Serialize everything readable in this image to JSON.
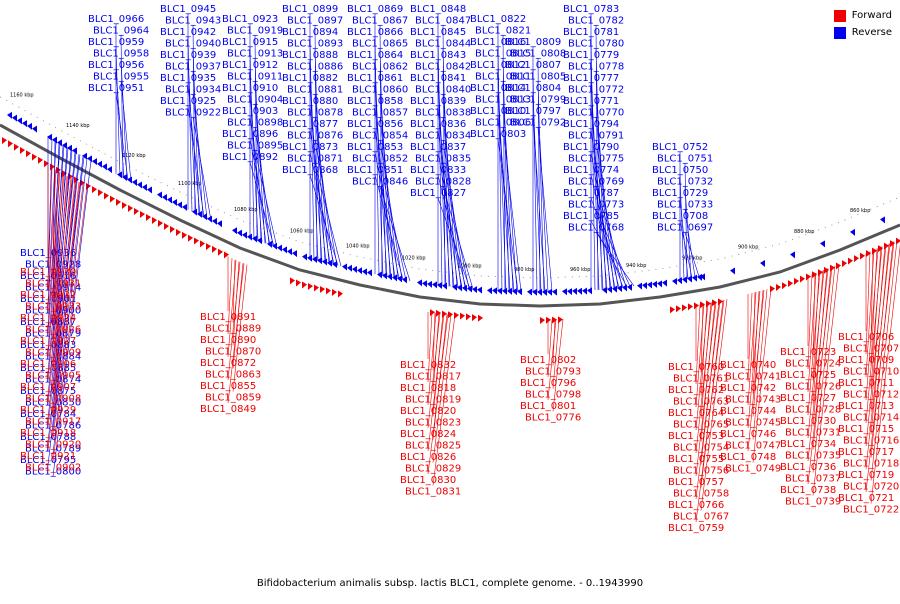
{
  "legend": {
    "forward_label": "Forward",
    "reverse_label": "Reverse",
    "forward_color": "#ee0000",
    "reverse_color": "#0000ee"
  },
  "caption": "Bifidobacterium animalis subsp. lactis BLC1, complete genome. - 0..1943990",
  "ruler_ticks": [
    "1160 kbp",
    "1140 kbp",
    "1120 kbp",
    "1100 kbp",
    "1080 kbp",
    "1060 kbp",
    "1040 kbp",
    "1020 kbp",
    "1000 kbp",
    "980 kbp",
    "960 kbp",
    "940 kbp",
    "920 kbp",
    "900 kbp",
    "880 kbp",
    "860 kbp"
  ],
  "reverse_labels": [
    "BLC1_0966",
    "BLC1_0964",
    "BLC1_0959",
    "BLC1_0958",
    "BLC1_0956",
    "BLC1_0955",
    "BLC1_0951",
    "BLC1_0945",
    "BLC1_0943",
    "BLC1_0942",
    "BLC1_0940",
    "BLC1_0939",
    "BLC1_0937",
    "BLC1_0935",
    "BLC1_0934",
    "BLC1_0925",
    "BLC1_0922",
    "BLC1_0923",
    "BLC1_0919",
    "BLC1_0915",
    "BLC1_0913",
    "BLC1_0912",
    "BLC1_0911",
    "BLC1_0910",
    "BLC1_0904",
    "BLC1_0903",
    "BLC1_0898",
    "BLC1_0896",
    "BLC1_0895",
    "BLC1_0892",
    "BLC1_0899",
    "BLC1_0897",
    "BLC1_0894",
    "BLC1_0893",
    "BLC1_0888",
    "BLC1_0886",
    "BLC1_0882",
    "BLC1_0881",
    "BLC1_0880",
    "BLC1_0878",
    "BLC1_0877",
    "BLC1_0876",
    "BLC1_0873",
    "BLC1_0871",
    "BLC1_0868",
    "BLC1_0869",
    "BLC1_0867",
    "BLC1_0866",
    "BLC1_0865",
    "BLC1_0864",
    "BLC1_0862",
    "BLC1_0861",
    "BLC1_0860",
    "BLC1_0858",
    "BLC1_0857",
    "BLC1_0856",
    "BLC1_0854",
    "BLC1_0853",
    "BLC1_0852",
    "BLC1_0851",
    "BLC1_0846",
    "BLC1_0848",
    "BLC1_0847",
    "BLC1_0845",
    "BLC1_0844",
    "BLC1_0843",
    "BLC1_0842",
    "BLC1_0841",
    "BLC1_0840",
    "BLC1_0839",
    "BLC1_0838",
    "BLC1_0836",
    "BLC1_0834",
    "BLC1_0837",
    "BLC1_0835",
    "BLC1_0833",
    "BLC1_0828",
    "BLC1_0827",
    "BLC1_0822",
    "BLC1_0821",
    "BLC1_0816",
    "BLC1_0815",
    "BLC1_0812",
    "BLC1_0811",
    "BLC1_0814",
    "BLC1_0813",
    "BLC1_0810",
    "BLC1_0806",
    "BLC1_0803",
    "BLC1_0809",
    "BLC1_0808",
    "BLC1_0807",
    "BLC1_0805",
    "BLC1_0804",
    "BLC1_0799",
    "BLC1_0797",
    "BLC1_0792",
    "BLC1_0783",
    "BLC1_0782",
    "BLC1_0781",
    "BLC1_0780",
    "BLC1_0779",
    "BLC1_0778",
    "BLC1_0777",
    "BLC1_0772",
    "BLC1_0771",
    "BLC1_0770",
    "BLC1_0794",
    "BLC1_0791",
    "BLC1_0790",
    "BLC1_0775",
    "BLC1_0774",
    "BLC1_0769",
    "BLC1_0787",
    "BLC1_0773",
    "BLC1_0785",
    "BLC1_0768",
    "BLC1_0752",
    "BLC1_0751",
    "BLC1_0750",
    "BLC1_0732",
    "BLC1_0729",
    "BLC1_0733",
    "BLC1_0708",
    "BLC1_0697",
    "BLC1_0936",
    "BLC1_0928",
    "BLC1_0916",
    "BLC1_0914",
    "BLC1_0901",
    "BLC1_0900",
    "BLC1_0887",
    "BLC1_0879",
    "BLC1_0883",
    "BLC1_0884",
    "BLC1_0885",
    "BLC1_0874",
    "BLC1_0875",
    "BLC1_0850",
    "BLC1_0784",
    "BLC1_0786",
    "BLC1_0788",
    "BLC1_0789",
    "BLC1_0795",
    "BLC1_0800"
  ],
  "forward_labels": [
    "BLC1_0930",
    "BLC1_0931",
    "BLC1_0932",
    "BLC1_0933",
    "BLC1_0924",
    "BLC1_0926",
    "BLC1_0927",
    "BLC1_0909",
    "BLC1_0906",
    "BLC1_0905",
    "BLC1_0907",
    "BLC1_0908",
    "BLC1_0929",
    "BLC1_0917",
    "BLC1_0918",
    "BLC1_0920",
    "BLC1_0921",
    "BLC1_0902",
    "BLC1_0891",
    "BLC1_0889",
    "BLC1_0890",
    "BLC1_0870",
    "BLC1_0872",
    "BLC1_0863",
    "BLC1_0855",
    "BLC1_0859",
    "BLC1_0849",
    "BLC1_0832",
    "BLC1_0817",
    "BLC1_0818",
    "BLC1_0819",
    "BLC1_0820",
    "BLC1_0823",
    "BLC1_0824",
    "BLC1_0825",
    "BLC1_0826",
    "BLC1_0829",
    "BLC1_0830",
    "BLC1_0831",
    "BLC1_0802",
    "BLC1_0793",
    "BLC1_0796",
    "BLC1_0798",
    "BLC1_0801",
    "BLC1_0776",
    "BLC1_0760",
    "BLC1_0761",
    "BLC1_0762",
    "BLC1_0763",
    "BLC1_0764",
    "BLC1_0765",
    "BLC1_0753",
    "BLC1_0754",
    "BLC1_0755",
    "BLC1_0756",
    "BLC1_0757",
    "BLC1_0758",
    "BLC1_0766",
    "BLC1_0767",
    "BLC1_0759",
    "BLC1_0740",
    "BLC1_0741",
    "BLC1_0742",
    "BLC1_0743",
    "BLC1_0744",
    "BLC1_0745",
    "BLC1_0746",
    "BLC1_0747",
    "BLC1_0748",
    "BLC1_0749",
    "BLC1_0723",
    "BLC1_0724",
    "BLC1_0725",
    "BLC1_0726",
    "BLC1_0727",
    "BLC1_0728",
    "BLC1_0730",
    "BLC1_0731",
    "BLC1_0734",
    "BLC1_0735",
    "BLC1_0736",
    "BLC1_0737",
    "BLC1_0738",
    "BLC1_0739",
    "BLC1_0706",
    "BLC1_0707",
    "BLC1_0709",
    "BLC1_0710",
    "BLC1_0711",
    "BLC1_0712",
    "BLC1_0713",
    "BLC1_0714",
    "BLC1_0715",
    "BLC1_0716",
    "BLC1_0717",
    "BLC1_0718",
    "BLC1_0719",
    "BLC1_0720",
    "BLC1_0721",
    "BLC1_0722"
  ]
}
